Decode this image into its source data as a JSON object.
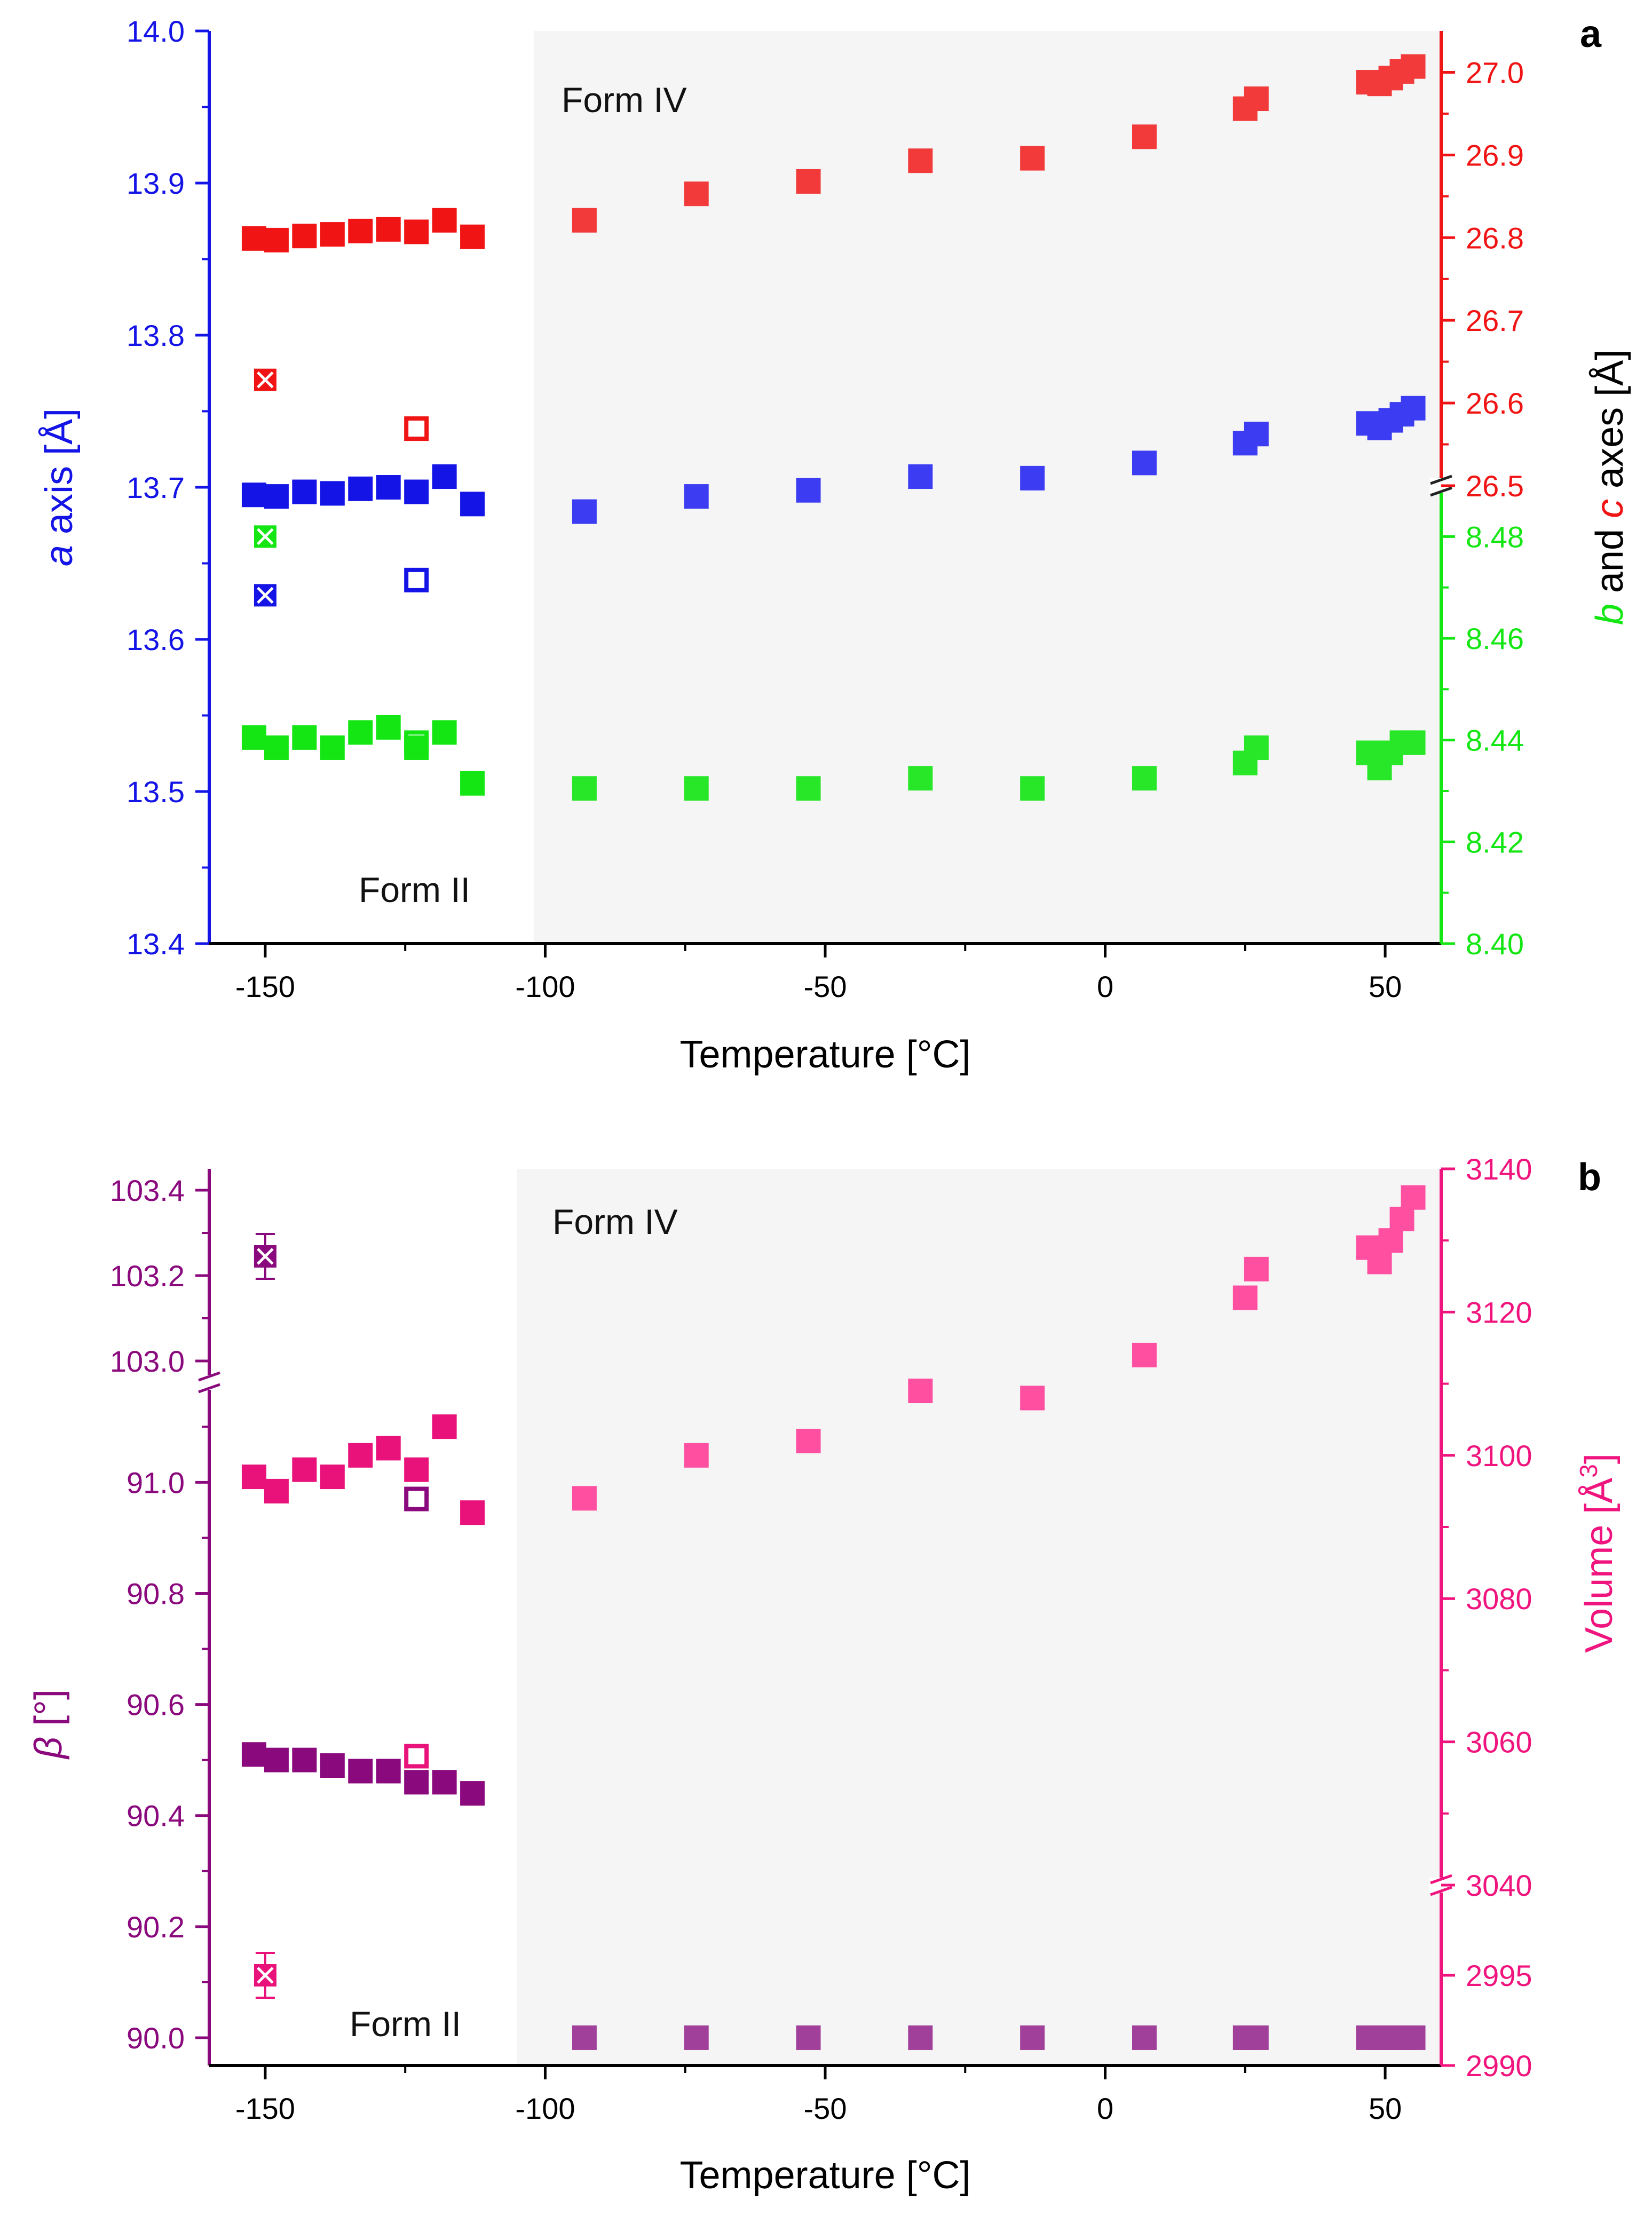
{
  "colors": {
    "a_axis": "#1414E6",
    "b_axis": "#14E614",
    "c_axis": "#F01414",
    "beta": "#8A0A7E",
    "volume": "#F0147E",
    "volume_ii": "#E8127A",
    "beta_iv": "#A0409A",
    "volume_iv": "#FF4FA0",
    "c_iv": "#F23A3A",
    "a_iv": "#3C3CF2",
    "b_iv": "#28E628",
    "shade": "#F5F5F5"
  },
  "chart_data": [
    {
      "type": "scatter",
      "panel_label": "a",
      "xlabel": "Temperature [°C]",
      "xlim": [
        -160,
        60
      ],
      "x_ticks": [
        -150,
        -100,
        -50,
        0,
        50
      ],
      "regions": [
        {
          "label": "Form II",
          "x_range": [
            -160,
            -102
          ]
        },
        {
          "label": "Form IV",
          "x_range": [
            -102,
            60
          ]
        }
      ],
      "left_axis": {
        "label_italic": "a",
        "label_rest": " axis [Å]",
        "ylim": [
          13.4,
          14.0
        ],
        "ticks": [
          "13.4",
          "13.5",
          "13.6",
          "13.7",
          "13.8",
          "13.9",
          "14.0"
        ]
      },
      "right_axis": {
        "label_italic_1": "b",
        "label_mid": " and ",
        "label_italic_2": "c",
        "label_rest": " axes [Å]",
        "upper_segment": {
          "ylim": [
            26.5,
            27.05
          ],
          "ticks": [
            "26.5",
            "26.6",
            "26.7",
            "26.8",
            "26.9",
            "27.0"
          ]
        },
        "lower_segment": {
          "ylim": [
            8.4,
            8.49
          ],
          "ticks": [
            "8.40",
            "8.42",
            "8.44",
            "8.46",
            "8.48"
          ]
        }
      },
      "series": [
        {
          "axis": "left",
          "marker": "filled",
          "form": "II",
          "x": [
            -152,
            -148,
            -143,
            -138,
            -133,
            -128,
            -123,
            -118,
            -113
          ],
          "y": [
            13.695,
            13.694,
            13.697,
            13.696,
            13.699,
            13.7,
            13.697,
            13.707,
            13.689
          ]
        },
        {
          "axis": "left",
          "marker": "filled",
          "form": "IV",
          "x": [
            -93,
            -73,
            -53,
            -33,
            -13,
            7,
            25,
            27,
            47,
            49,
            51,
            53,
            55
          ],
          "y": [
            13.684,
            13.694,
            13.698,
            13.707,
            13.706,
            13.716,
            13.729,
            13.735,
            13.742,
            13.739,
            13.744,
            13.748,
            13.752
          ]
        },
        {
          "axis": "left",
          "marker": "open",
          "x": [
            -123
          ],
          "y": [
            13.639
          ]
        },
        {
          "axis": "left",
          "marker": "crossed",
          "x": [
            -150
          ],
          "y": [
            13.629
          ]
        },
        {
          "axis": "right_lower",
          "marker": "filled",
          "form": "II",
          "x": [
            -152,
            -148,
            -143,
            -138,
            -133,
            -128,
            -123,
            -118,
            -113
          ],
          "y": [
            8.4405,
            8.4385,
            8.4405,
            8.4385,
            8.4415,
            8.4425,
            8.4385,
            8.4415,
            8.4315
          ]
        },
        {
          "axis": "right_lower",
          "marker": "filled",
          "form": "IV",
          "x": [
            -93,
            -73,
            -53,
            -33,
            -13,
            7,
            25,
            27,
            47,
            49,
            51,
            53,
            55
          ],
          "y": [
            8.4305,
            8.4305,
            8.4305,
            8.4325,
            8.4305,
            8.4325,
            8.4355,
            8.4385,
            8.4375,
            8.4345,
            8.4375,
            8.4395,
            8.4395
          ]
        },
        {
          "axis": "right_lower",
          "marker": "open",
          "x": [
            -123
          ],
          "y": [
            8.4395
          ]
        },
        {
          "axis": "right_lower",
          "marker": "crossed",
          "x": [
            -150
          ],
          "y": [
            8.48
          ]
        },
        {
          "axis": "right_upper",
          "marker": "filled",
          "form": "II",
          "x": [
            -152,
            -148,
            -143,
            -138,
            -133,
            -128,
            -123,
            -118,
            -113
          ],
          "y": [
            26.799,
            26.797,
            26.802,
            26.804,
            26.808,
            26.81,
            26.807,
            26.821,
            26.801
          ]
        },
        {
          "axis": "right_upper",
          "marker": "filled",
          "form": "IV",
          "x": [
            -93,
            -73,
            -53,
            -33,
            -13,
            7,
            25,
            27,
            47,
            49,
            51,
            53,
            55
          ],
          "y": [
            26.821,
            26.853,
            26.868,
            26.893,
            26.896,
            26.922,
            26.956,
            26.968,
            26.988,
            26.986,
            26.993,
            27.001,
            27.007
          ]
        },
        {
          "axis": "right_upper",
          "marker": "open",
          "x": [
            -123
          ],
          "y": [
            26.569
          ]
        },
        {
          "axis": "right_upper",
          "marker": "crossed",
          "x": [
            -150
          ],
          "y": [
            26.628
          ]
        }
      ]
    },
    {
      "type": "scatter",
      "panel_label": "b",
      "xlabel": "Temperature [°C]",
      "xlim": [
        -160,
        60
      ],
      "x_ticks": [
        -150,
        -100,
        -50,
        0,
        50
      ],
      "regions": [
        {
          "label": "Form II",
          "x_range": [
            -160,
            -105
          ]
        },
        {
          "label": "Form IV",
          "x_range": [
            -105,
            60
          ]
        }
      ],
      "left_axis": {
        "label_italic": "β",
        "label_rest": " [°]",
        "lower_segment": {
          "ylim": [
            89.95,
            91.18
          ],
          "ticks": [
            "90.0",
            "90.2",
            "90.4",
            "90.6",
            "90.8",
            "91.0"
          ]
        },
        "upper_segment": {
          "ylim": [
            102.95,
            103.45
          ],
          "ticks": [
            "103.0",
            "103.2",
            "103.4"
          ]
        }
      },
      "right_axis": {
        "label_rest": "Volume [Å",
        "label_sup": "3",
        "label_end": "]",
        "lower_segment": {
          "ylim": [
            2990,
            3000
          ],
          "ticks": [
            "2990",
            "2995"
          ]
        },
        "upper_segment": {
          "ylim": [
            3040,
            3140
          ],
          "ticks": [
            "3040",
            "3060",
            "3080",
            "3100",
            "3120",
            "3140"
          ]
        }
      },
      "series": [
        {
          "axis": "left_lower",
          "marker": "filled",
          "form": "II",
          "x": [
            -152,
            -148,
            -143,
            -138,
            -133,
            -128,
            -123,
            -118,
            -113
          ],
          "y": [
            90.51,
            90.5,
            90.5,
            90.49,
            90.48,
            90.48,
            90.46,
            90.46,
            90.44
          ]
        },
        {
          "axis": "left_lower",
          "marker": "filled",
          "form": "IV",
          "x": [
            -93,
            -73,
            -53,
            -33,
            -13,
            7,
            25,
            27,
            47,
            49,
            51,
            53,
            55
          ],
          "y": [
            90.0,
            90.0,
            90.0,
            90.0,
            90.0,
            90.0,
            90.0,
            90.0,
            90.0,
            90.0,
            90.0,
            90.0,
            90.0
          ]
        },
        {
          "axis": "left_lower",
          "marker": "open",
          "x": [
            -123
          ],
          "y": [
            90.97
          ]
        },
        {
          "axis": "left_upper",
          "marker": "crossed",
          "error_bar": true,
          "x": [
            -150
          ],
          "y": [
            103.245
          ]
        },
        {
          "axis": "right_upper",
          "marker": "filled",
          "form": "II",
          "x": [
            -152,
            -148,
            -143,
            -138,
            -133,
            -128,
            -123,
            -118,
            -113
          ],
          "y": [
            3097,
            3095,
            3098,
            3097,
            3100,
            3101,
            3098,
            3104,
            3092
          ]
        },
        {
          "axis": "right_upper",
          "marker": "filled",
          "form": "IV",
          "x": [
            -93,
            -73,
            -53,
            -33,
            -13,
            7,
            25,
            27,
            47,
            49,
            51,
            53,
            55
          ],
          "y": [
            3094,
            3100,
            3102,
            3109,
            3108,
            3114,
            3122,
            3126,
            3129,
            3127,
            3130,
            3133,
            3136
          ]
        },
        {
          "axis": "right_upper",
          "marker": "open",
          "x": [
            -123
          ],
          "y": [
            3058
          ]
        },
        {
          "axis": "right_lower",
          "marker": "crossed",
          "error_bar": true,
          "x": [
            -150
          ],
          "y": [
            2995
          ]
        }
      ]
    }
  ]
}
